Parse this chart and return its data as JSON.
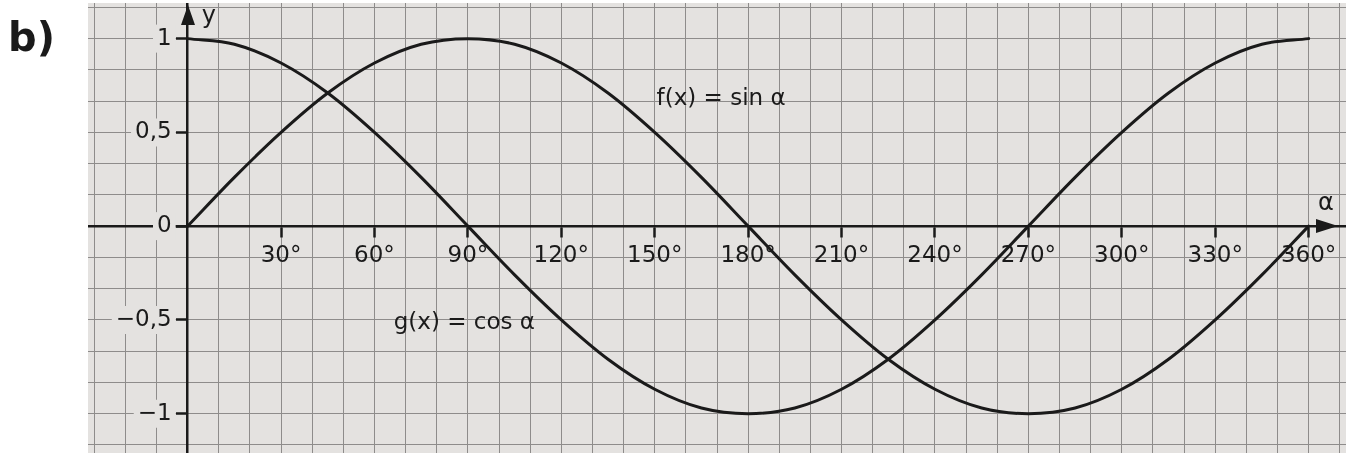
{
  "chart_data": {
    "type": "line",
    "title": "b)",
    "xlabel": "α",
    "ylabel": "y",
    "x": [
      0,
      15,
      30,
      45,
      60,
      75,
      90,
      105,
      120,
      135,
      150,
      165,
      180,
      195,
      210,
      225,
      240,
      255,
      270,
      285,
      300,
      315,
      330,
      345,
      360
    ],
    "series": [
      {
        "name": "f(x) = sin α",
        "color": "#1a1a1a",
        "values": [
          0,
          0.26,
          0.5,
          0.71,
          0.87,
          0.97,
          1,
          0.97,
          0.87,
          0.71,
          0.5,
          0.26,
          0,
          -0.26,
          -0.5,
          -0.71,
          -0.87,
          -0.97,
          -1,
          -0.97,
          -0.87,
          -0.71,
          -0.5,
          -0.26,
          0
        ]
      },
      {
        "name": "g(x) = cos α",
        "color": "#1a1a1a",
        "values": [
          1,
          0.97,
          0.87,
          0.71,
          0.5,
          0.26,
          0,
          -0.26,
          -0.5,
          -0.71,
          -0.87,
          -0.97,
          -1,
          -0.97,
          -0.87,
          -0.71,
          -0.5,
          -0.26,
          0,
          0.26,
          0.5,
          0.71,
          0.87,
          0.97,
          1
        ]
      }
    ],
    "xlim": [
      -32,
      372
    ],
    "ylim": [
      -1.21,
      1.19
    ],
    "xticks": [
      {
        "value": -30,
        "label": null
      },
      {
        "value": -20,
        "label": null
      },
      {
        "value": -10,
        "label": null
      },
      {
        "value": 0,
        "label": null
      },
      {
        "value": 10,
        "label": null
      },
      {
        "value": 20,
        "label": null
      },
      {
        "value": 30,
        "label": "30°"
      },
      {
        "value": 40,
        "label": null
      },
      {
        "value": 50,
        "label": null
      },
      {
        "value": 60,
        "label": "60°"
      },
      {
        "value": 70,
        "label": null
      },
      {
        "value": 80,
        "label": null
      },
      {
        "value": 90,
        "label": "90°"
      },
      {
        "value": 100,
        "label": null
      },
      {
        "value": 110,
        "label": null
      },
      {
        "value": 120,
        "label": "120°"
      },
      {
        "value": 130,
        "label": null
      },
      {
        "value": 140,
        "label": null
      },
      {
        "value": 150,
        "label": "150°"
      },
      {
        "value": 160,
        "label": null
      },
      {
        "value": 170,
        "label": null
      },
      {
        "value": 180,
        "label": "180°"
      },
      {
        "value": 190,
        "label": null
      },
      {
        "value": 200,
        "label": null
      },
      {
        "value": 210,
        "label": "210°"
      },
      {
        "value": 220,
        "label": null
      },
      {
        "value": 230,
        "label": null
      },
      {
        "value": 240,
        "label": "240°"
      },
      {
        "value": 250,
        "label": null
      },
      {
        "value": 260,
        "label": null
      },
      {
        "value": 270,
        "label": "270°"
      },
      {
        "value": 280,
        "label": null
      },
      {
        "value": 290,
        "label": null
      },
      {
        "value": 300,
        "label": "300°"
      },
      {
        "value": 310,
        "label": null
      },
      {
        "value": 320,
        "label": null
      },
      {
        "value": 330,
        "label": "330°"
      },
      {
        "value": 340,
        "label": null
      },
      {
        "value": 350,
        "label": null
      },
      {
        "value": 360,
        "label": "360°"
      },
      {
        "value": 370,
        "label": null
      }
    ],
    "yticks": [
      {
        "value": -1.167,
        "label": null
      },
      {
        "value": -1,
        "label": "−1"
      },
      {
        "value": -0.833,
        "label": null
      },
      {
        "value": -0.667,
        "label": null
      },
      {
        "value": -0.5,
        "label": "−0,5"
      },
      {
        "value": -0.333,
        "label": null
      },
      {
        "value": -0.167,
        "label": null
      },
      0,
      {
        "value": 0.167,
        "label": null
      },
      {
        "value": 0.333,
        "label": null
      },
      {
        "value": 0.5,
        "label": "0,5"
      },
      {
        "value": 0.667,
        "label": null
      },
      {
        "value": 0.833,
        "label": null
      },
      1,
      {
        "value": 1.167,
        "label": null
      }
    ],
    "grid": true,
    "legend": false,
    "marker": "none"
  }
}
